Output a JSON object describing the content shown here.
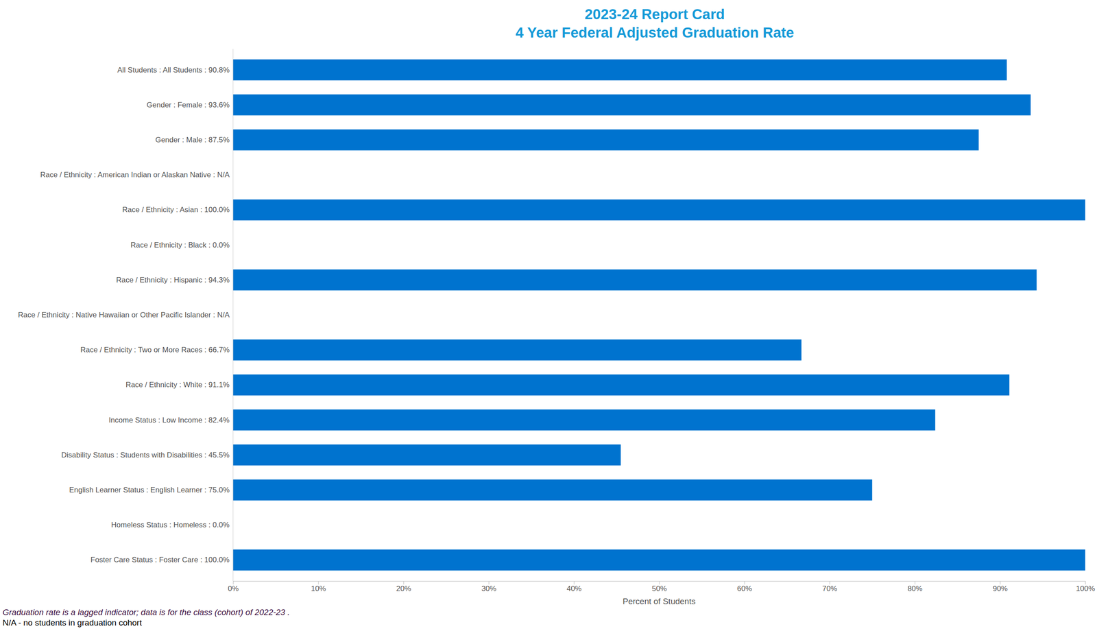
{
  "chart_data": {
    "type": "bar",
    "orientation": "horizontal",
    "title": "2023-24 Report Card",
    "subtitle": "4 Year Federal Adjusted Graduation Rate",
    "categories": [
      "All Students : All Students : 90.8%",
      "Gender : Female : 93.6%",
      "Gender : Male : 87.5%",
      "Race / Ethnicity : American Indian or Alaskan Native : N/A",
      "Race / Ethnicity : Asian : 100.0%",
      "Race / Ethnicity : Black : 0.0%",
      "Race / Ethnicity : Hispanic : 94.3%",
      "Race / Ethnicity : Native Hawaiian or Other Pacific Islander : N/A",
      "Race / Ethnicity : Two or More Races : 66.7%",
      "Race / Ethnicity : White : 91.1%",
      "Income Status : Low Income : 82.4%",
      "Disability Status : Students with Disabilities : 45.5%",
      "English Learner Status : English Learner : 75.0%",
      "Homeless Status : Homeless : 0.0%",
      "Foster Care Status : Foster Care : 100.0%"
    ],
    "values": [
      90.8,
      93.6,
      87.5,
      null,
      100.0,
      0.0,
      94.3,
      null,
      66.7,
      91.1,
      82.4,
      45.5,
      75.0,
      0.0,
      100.0
    ],
    "color": "#0073cf",
    "xlabel": "Percent of Students",
    "xlim": [
      0,
      100
    ],
    "xticks": [
      {
        "value": 0,
        "label": "0%"
      },
      {
        "value": 10,
        "label": "10%"
      },
      {
        "value": 20,
        "label": "20%"
      },
      {
        "value": 30,
        "label": "30%"
      },
      {
        "value": 40,
        "label": "40%"
      },
      {
        "value": 50,
        "label": "50%"
      },
      {
        "value": 60,
        "label": "60%"
      },
      {
        "value": 70,
        "label": "70%"
      },
      {
        "value": 80,
        "label": "80%"
      },
      {
        "value": 90,
        "label": "90%"
      },
      {
        "value": 100,
        "label": "100%"
      }
    ],
    "grid": false,
    "annotations": [
      "Graduation rate is a lagged indicator; data is for the class (cohort) of 2022-23 .",
      "N/A - no students in graduation cohort"
    ]
  }
}
